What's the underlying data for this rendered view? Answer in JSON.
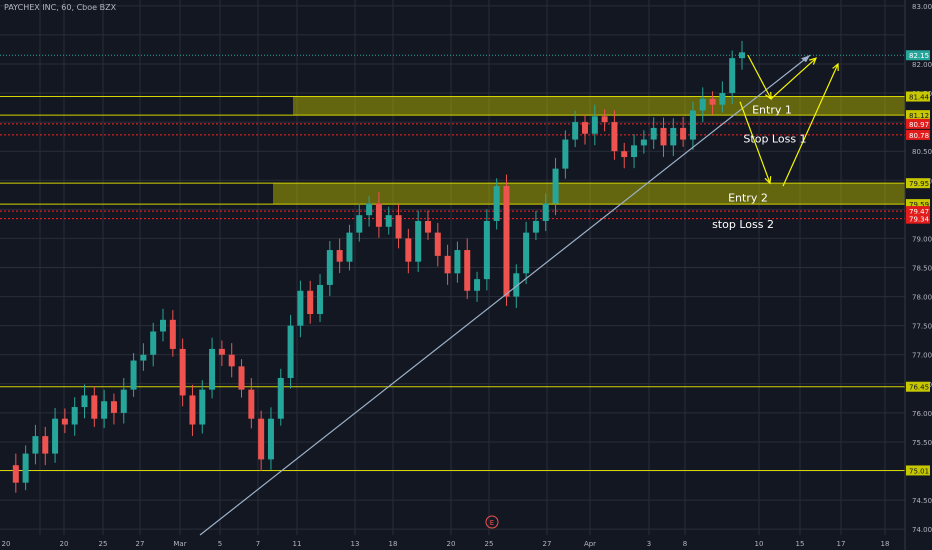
{
  "header": {
    "title": "PAYCHEX INC, 60, Cboe BZX"
  },
  "colors": {
    "background": "#131722",
    "grid": "#2a2e39",
    "up": "#26a69a",
    "down": "#ef5350",
    "zone": "#a8a800",
    "level_line": "#d4d400",
    "stop_line": "#ff2020",
    "trendline": "#9db2c9",
    "arrows": "#f6f600",
    "price_tag": "#26a69a"
  },
  "annotations": {
    "entry1": "Entry 1",
    "stop1": "Stop Loss 1",
    "entry2": "Entry 2",
    "stop2": "stop Loss 2",
    "event_marker": "E"
  },
  "chart_data": {
    "type": "candlestick",
    "title": "PAYCHEX INC, 60, Cboe BZX",
    "ylim": [
      73.9,
      83.1
    ],
    "yticks": [
      83.0,
      82.0,
      81.5,
      80.5,
      80.0,
      79.0,
      78.5,
      78.0,
      77.5,
      77.0,
      76.5,
      76.0,
      75.5,
      74.5,
      74.0
    ],
    "ytick_labels": [
      "83.00",
      "82.00",
      "81.50",
      "80.50",
      "80.00",
      "79.00",
      "78.50",
      "78.00",
      "77.50",
      "77.00",
      "76.50",
      "76.00",
      "75.50",
      "74.50",
      "74.00"
    ],
    "xticks": [
      "20",
      "25",
      "27",
      "Mar",
      "5",
      "7",
      "11",
      "13",
      "18",
      "20",
      "25",
      "27",
      "Apr",
      "3",
      "8",
      "10",
      "15",
      "17",
      "18"
    ],
    "price_labels": [
      {
        "value": 82.15,
        "text": "82.15",
        "kind": "last"
      },
      {
        "value": 81.44,
        "text": "81.44",
        "kind": "level"
      },
      {
        "value": 81.12,
        "text": "81.12",
        "kind": "level"
      },
      {
        "value": 80.97,
        "text": "80.97",
        "kind": "stop"
      },
      {
        "value": 80.78,
        "text": "80.78",
        "kind": "stop"
      },
      {
        "value": 79.95,
        "text": "79.95",
        "kind": "level"
      },
      {
        "value": 79.59,
        "text": "79.59",
        "kind": "level"
      },
      {
        "value": 79.47,
        "text": "79.47",
        "kind": "stop"
      },
      {
        "value": 79.34,
        "text": "79.34",
        "kind": "stop"
      },
      {
        "value": 76.45,
        "text": "76.45",
        "kind": "level"
      },
      {
        "value": 75.01,
        "text": "75.01",
        "kind": "level"
      }
    ],
    "zones": [
      {
        "from": 81.12,
        "to": 81.44,
        "label": "Entry 1"
      },
      {
        "from": 79.59,
        "to": 79.95,
        "label": "Entry 2"
      }
    ],
    "path": [
      75.1,
      74.8,
      75.3,
      75.6,
      75.3,
      75.9,
      75.8,
      76.1,
      76.3,
      75.9,
      76.2,
      76.0,
      76.4,
      76.9,
      77.0,
      77.4,
      77.6,
      77.1,
      76.3,
      75.8,
      76.4,
      77.1,
      77.0,
      76.8,
      76.4,
      75.9,
      75.2,
      75.9,
      76.6,
      77.5,
      78.1,
      77.7,
      78.2,
      78.8,
      78.6,
      79.1,
      79.4,
      79.6,
      79.2,
      79.4,
      79.0,
      78.6,
      79.3,
      79.1,
      78.7,
      78.4,
      78.8,
      78.1,
      78.3,
      79.3,
      79.9,
      78.0,
      78.4,
      79.1,
      79.3,
      79.6,
      80.2,
      80.7,
      81.0,
      80.8,
      81.1,
      81.0,
      80.5,
      80.4,
      80.6,
      80.7,
      80.9,
      80.6,
      80.9,
      80.7,
      81.2,
      81.4,
      81.3,
      81.5,
      82.1,
      82.2
    ],
    "trendline": {
      "start_value": 73.9,
      "end_value": 82.15
    }
  }
}
